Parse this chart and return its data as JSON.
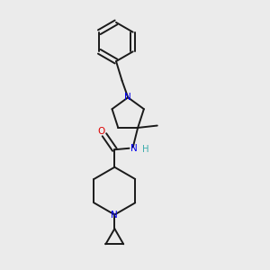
{
  "background_color": "#ebebeb",
  "bond_color": "#1a1a1a",
  "N_color": "#0000ee",
  "O_color": "#dd0000",
  "H_color": "#3aacac",
  "line_width": 1.4,
  "figsize": [
    3.0,
    3.0
  ],
  "dpi": 100,
  "xlim": [
    0,
    10
  ],
  "ylim": [
    0,
    10
  ]
}
